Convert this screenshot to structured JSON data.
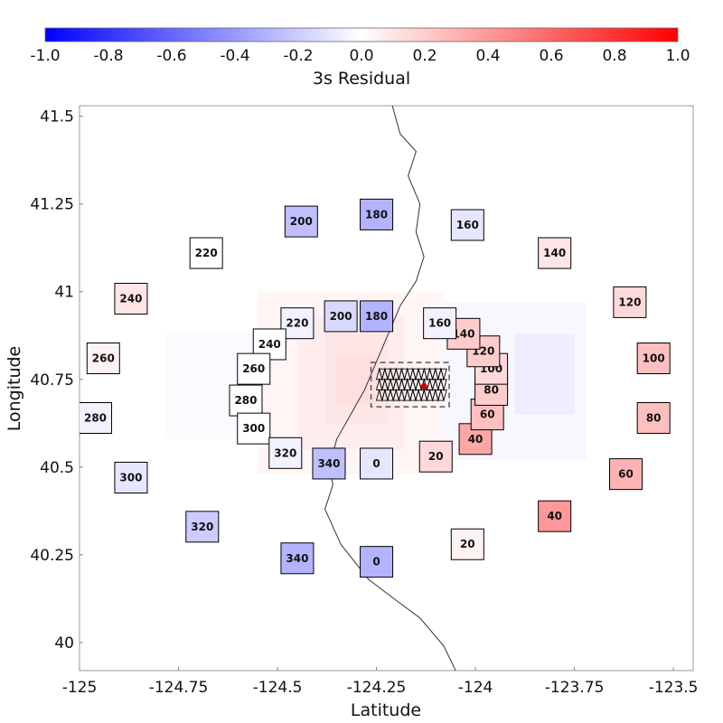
{
  "chart_data": {
    "type": "heatmap",
    "title": "",
    "xlabel": "Latitude",
    "ylabel": "Longitude",
    "xlim": [
      -125.0,
      -123.45
    ],
    "ylim": [
      39.92,
      41.53
    ],
    "xticks": [
      -125,
      -124.75,
      -124.5,
      -124.25,
      -124,
      -123.75,
      -123.5
    ],
    "xtick_labels": [
      "-125",
      "-124.75",
      "-124.5",
      "-124.25",
      "-124",
      "-123.75",
      "-123.5"
    ],
    "yticks": [
      40,
      40.25,
      40.5,
      40.75,
      41,
      41.25,
      41.5
    ],
    "ytick_labels": [
      "40",
      "40.25",
      "40.5",
      "40.75",
      "41",
      "41.25",
      "41.5"
    ],
    "colorbar": {
      "label": "3s Residual",
      "min": -1.0,
      "max": 1.0,
      "ticks": [
        -1.0,
        -0.8,
        -0.6,
        -0.4,
        -0.2,
        0.0,
        0.2,
        0.4,
        0.6,
        0.8,
        1.0
      ],
      "tick_labels": [
        "-1.0",
        "-0.8",
        "-0.6",
        "-0.4",
        "-0.2",
        "0.0",
        "0.2",
        "0.4",
        "0.6",
        "0.8",
        "1.0"
      ],
      "colors": [
        "#0000ff",
        "#ffffff",
        "#ff0000"
      ]
    },
    "grid": false,
    "coastline": [
      [
        -124.21,
        41.53
      ],
      [
        -124.19,
        41.45
      ],
      [
        -124.15,
        41.4
      ],
      [
        -124.17,
        41.33
      ],
      [
        -124.14,
        41.25
      ],
      [
        -124.15,
        41.17
      ],
      [
        -124.13,
        41.1
      ],
      [
        -124.15,
        41.03
      ],
      [
        -124.19,
        40.96
      ],
      [
        -124.22,
        40.88
      ],
      [
        -124.25,
        40.8
      ],
      [
        -124.28,
        40.72
      ],
      [
        -124.32,
        40.64
      ],
      [
        -124.35,
        40.58
      ],
      [
        -124.37,
        40.5
      ],
      [
        -124.36,
        40.45
      ],
      [
        -124.38,
        40.38
      ],
      [
        -124.34,
        40.28
      ],
      [
        -124.27,
        40.18
      ],
      [
        -124.2,
        40.12
      ],
      [
        -124.14,
        40.07
      ],
      [
        -124.08,
        39.99
      ],
      [
        -124.05,
        39.92
      ]
    ],
    "fault_patch": {
      "lon": [
        -124.25,
        -124.08
      ],
      "lat": [
        40.69,
        40.78
      ],
      "epicenter": [
        -124.13,
        40.73
      ]
    },
    "inner_stations": [
      {
        "label": "0",
        "lon": -124.25,
        "lat": 40.51,
        "residual": -0.1
      },
      {
        "label": "20",
        "lon": -124.1,
        "lat": 40.53,
        "residual": 0.15
      },
      {
        "label": "40",
        "lon": -124.0,
        "lat": 40.58,
        "residual": 0.35
      },
      {
        "label": "60",
        "lon": -123.97,
        "lat": 40.65,
        "residual": 0.25
      },
      {
        "label": "80",
        "lon": -123.96,
        "lat": 40.72,
        "residual": 0.2
      },
      {
        "label": "100",
        "lon": -123.96,
        "lat": 40.78,
        "residual": 0.15
      },
      {
        "label": "120",
        "lon": -123.98,
        "lat": 40.83,
        "residual": 0.2
      },
      {
        "label": "140",
        "lon": -124.03,
        "lat": 40.88,
        "residual": 0.2
      },
      {
        "label": "160",
        "lon": -124.09,
        "lat": 40.91,
        "residual": -0.05
      },
      {
        "label": "180",
        "lon": -124.25,
        "lat": 40.93,
        "residual": -0.3
      },
      {
        "label": "200",
        "lon": -124.34,
        "lat": 40.93,
        "residual": -0.15
      },
      {
        "label": "220",
        "lon": -124.45,
        "lat": 40.91,
        "residual": -0.05
      },
      {
        "label": "240",
        "lon": -124.52,
        "lat": 40.85,
        "residual": 0.0
      },
      {
        "label": "260",
        "lon": -124.56,
        "lat": 40.78,
        "residual": 0.0
      },
      {
        "label": "280",
        "lon": -124.58,
        "lat": 40.69,
        "residual": 0.0
      },
      {
        "label": "300",
        "lon": -124.56,
        "lat": 40.61,
        "residual": 0.0
      },
      {
        "label": "320",
        "lon": -124.48,
        "lat": 40.54,
        "residual": -0.05
      },
      {
        "label": "340",
        "lon": -124.37,
        "lat": 40.51,
        "residual": -0.25
      }
    ],
    "outer_stations": [
      {
        "label": "0",
        "lon": -124.25,
        "lat": 40.23,
        "residual": -0.3
      },
      {
        "label": "20",
        "lon": -124.02,
        "lat": 40.28,
        "residual": 0.05
      },
      {
        "label": "40",
        "lon": -123.8,
        "lat": 40.36,
        "residual": 0.4
      },
      {
        "label": "60",
        "lon": -123.62,
        "lat": 40.48,
        "residual": 0.3
      },
      {
        "label": "80",
        "lon": -123.55,
        "lat": 40.64,
        "residual": 0.25
      },
      {
        "label": "100",
        "lon": -123.55,
        "lat": 40.81,
        "residual": 0.25
      },
      {
        "label": "120",
        "lon": -123.61,
        "lat": 40.97,
        "residual": 0.15
      },
      {
        "label": "140",
        "lon": -123.8,
        "lat": 41.11,
        "residual": 0.1
      },
      {
        "label": "160",
        "lon": -124.02,
        "lat": 41.19,
        "residual": -0.1
      },
      {
        "label": "180",
        "lon": -124.25,
        "lat": 41.22,
        "residual": -0.3
      },
      {
        "label": "200",
        "lon": -124.44,
        "lat": 41.2,
        "residual": -0.25
      },
      {
        "label": "220",
        "lon": -124.68,
        "lat": 41.11,
        "residual": 0.0
      },
      {
        "label": "240",
        "lon": -124.87,
        "lat": 40.98,
        "residual": 0.1
      },
      {
        "label": "260",
        "lon": -124.94,
        "lat": 40.81,
        "residual": 0.05
      },
      {
        "label": "280",
        "lon": -124.96,
        "lat": 40.64,
        "residual": -0.05
      },
      {
        "label": "300",
        "lon": -124.87,
        "lat": 40.47,
        "residual": -0.1
      },
      {
        "label": "320",
        "lon": -124.69,
        "lat": 40.33,
        "residual": -0.2
      },
      {
        "label": "340",
        "lon": -124.45,
        "lat": 40.24,
        "residual": -0.3
      }
    ],
    "residual_field": [
      {
        "lon0": -124.55,
        "lon1": -124.08,
        "lat0": 40.48,
        "lat1": 41.0,
        "value": 0.04
      },
      {
        "lon0": -124.45,
        "lon1": -124.18,
        "lat0": 40.55,
        "lat1": 40.93,
        "value": 0.07
      },
      {
        "lon0": -124.38,
        "lon1": -124.22,
        "lat0": 40.62,
        "lat1": 40.88,
        "value": 0.1
      },
      {
        "lon0": -124.35,
        "lon1": -124.25,
        "lat0": 40.68,
        "lat1": 40.82,
        "value": 0.13
      },
      {
        "lon0": -124.78,
        "lon1": -124.55,
        "lat0": 40.58,
        "lat1": 40.88,
        "value": -0.02
      },
      {
        "lon0": -124.08,
        "lon1": -123.72,
        "lat0": 40.52,
        "lat1": 40.97,
        "value": -0.03
      },
      {
        "lon0": -123.9,
        "lon1": -123.75,
        "lat0": 40.65,
        "lat1": 40.88,
        "value": -0.07
      }
    ]
  }
}
